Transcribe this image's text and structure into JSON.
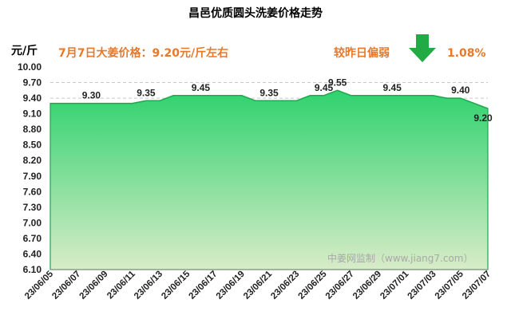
{
  "header": {
    "title": "昌邑优质圆头洗姜价格走势",
    "unit": "元/斤",
    "price_note": "7月7日大姜价格：9.20元/斤左右",
    "compare_note": "较昨日偏弱",
    "change_pct": "1.08%",
    "trend_icon": "down-arrow-icon",
    "trend_color": "#22aa44"
  },
  "watermark": "中姜网监制（www.jiang7.com）",
  "colors": {
    "area_top": "#2fd26e",
    "area_bottom": "#d8ecc8",
    "line": "#1fa84e",
    "accent": "#e8782a"
  },
  "chart_data": {
    "type": "area",
    "title": "昌邑优质圆头洗姜价格走势",
    "ylabel": "元/斤",
    "xlabel": "",
    "ylim": [
      6.1,
      10.0
    ],
    "yticks": [
      "10.00",
      "9.70",
      "9.40",
      "9.10",
      "8.80",
      "8.50",
      "8.20",
      "7.90",
      "7.60",
      "7.30",
      "7.00",
      "6.70",
      "6.40",
      "6.10"
    ],
    "grid": "dashed",
    "xticks": [
      "23/06/05",
      "23/06/07",
      "23/06/09",
      "23/06/11",
      "23/06/13",
      "23/06/15",
      "23/06/17",
      "23/06/19",
      "23/06/21",
      "23/06/23",
      "23/06/25",
      "23/06/27",
      "23/06/29",
      "23/07/01",
      "23/07/03",
      "23/07/05",
      "23/07/07"
    ],
    "x": [
      "23/06/05",
      "23/06/06",
      "23/06/07",
      "23/06/08",
      "23/06/09",
      "23/06/10",
      "23/06/11",
      "23/06/12",
      "23/06/13",
      "23/06/14",
      "23/06/15",
      "23/06/16",
      "23/06/17",
      "23/06/18",
      "23/06/19",
      "23/06/20",
      "23/06/21",
      "23/06/22",
      "23/06/23",
      "23/06/24",
      "23/06/25",
      "23/06/26",
      "23/06/27",
      "23/06/28",
      "23/06/29",
      "23/06/30",
      "23/07/01",
      "23/07/02",
      "23/07/03",
      "23/07/04",
      "23/07/05",
      "23/07/06",
      "23/07/07"
    ],
    "values": [
      9.3,
      9.3,
      9.3,
      9.3,
      9.3,
      9.3,
      9.3,
      9.35,
      9.35,
      9.45,
      9.45,
      9.45,
      9.45,
      9.45,
      9.45,
      9.35,
      9.35,
      9.35,
      9.35,
      9.45,
      9.45,
      9.55,
      9.45,
      9.45,
      9.45,
      9.45,
      9.45,
      9.45,
      9.45,
      9.4,
      9.4,
      9.3,
      9.2
    ],
    "data_labels": [
      {
        "x": "23/06/08",
        "text": "9.30"
      },
      {
        "x": "23/06/12",
        "text": "9.35"
      },
      {
        "x": "23/06/16",
        "text": "9.45"
      },
      {
        "x": "23/06/21",
        "text": "9.35"
      },
      {
        "x": "23/06/25",
        "text": "9.45"
      },
      {
        "x": "23/06/26",
        "text": "9.55"
      },
      {
        "x": "23/06/30",
        "text": "9.45"
      },
      {
        "x": "23/07/05",
        "text": "9.40"
      },
      {
        "x": "23/07/07",
        "text": "9.20"
      }
    ]
  }
}
